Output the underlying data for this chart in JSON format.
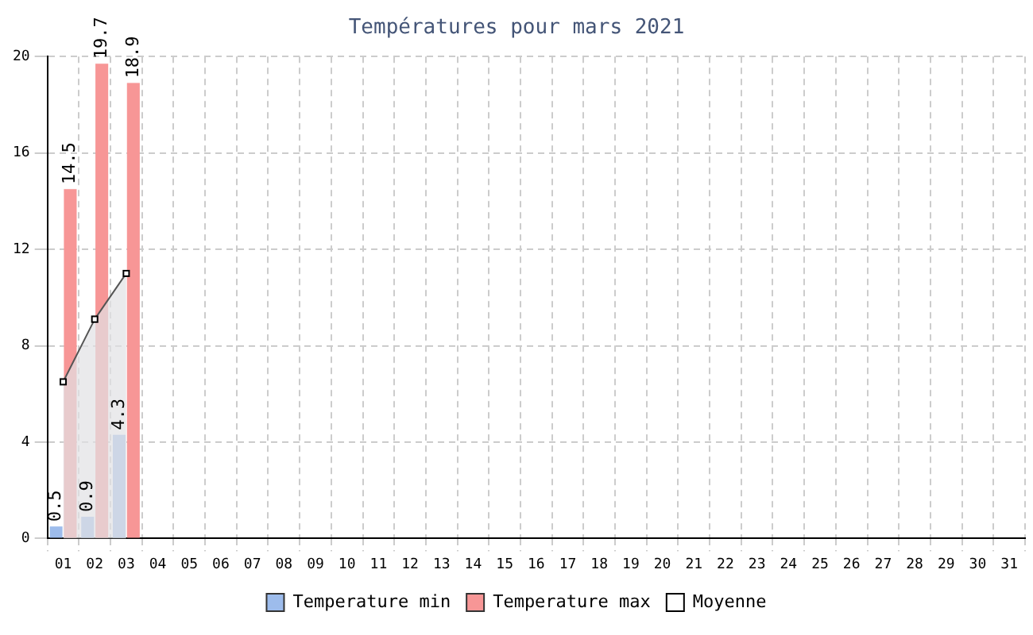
{
  "chart_data": {
    "type": "bar",
    "title": "Températures pour mars 2021",
    "categories": [
      "01",
      "02",
      "03",
      "04",
      "05",
      "06",
      "07",
      "08",
      "09",
      "10",
      "11",
      "12",
      "13",
      "14",
      "15",
      "16",
      "17",
      "18",
      "19",
      "20",
      "21",
      "22",
      "23",
      "24",
      "25",
      "26",
      "27",
      "28",
      "29",
      "30",
      "31"
    ],
    "series": [
      {
        "name": "Temperature min",
        "color": "#9dbcec",
        "values": [
          0.5,
          0.9,
          4.3,
          null,
          null,
          null,
          null,
          null,
          null,
          null,
          null,
          null,
          null,
          null,
          null,
          null,
          null,
          null,
          null,
          null,
          null,
          null,
          null,
          null,
          null,
          null,
          null,
          null,
          null,
          null,
          null
        ],
        "value_labels": [
          "0.5",
          "0.9",
          "4.3",
          null,
          null,
          null,
          null,
          null,
          null,
          null,
          null,
          null,
          null,
          null,
          null,
          null,
          null,
          null,
          null,
          null,
          null,
          null,
          null,
          null,
          null,
          null,
          null,
          null,
          null,
          null,
          null
        ]
      },
      {
        "name": "Temperature max",
        "color": "#f79696",
        "values": [
          14.5,
          19.7,
          18.9,
          null,
          null,
          null,
          null,
          null,
          null,
          null,
          null,
          null,
          null,
          null,
          null,
          null,
          null,
          null,
          null,
          null,
          null,
          null,
          null,
          null,
          null,
          null,
          null,
          null,
          null,
          null,
          null
        ],
        "value_labels": [
          "14.5",
          "19.7",
          "18.9",
          null,
          null,
          null,
          null,
          null,
          null,
          null,
          null,
          null,
          null,
          null,
          null,
          null,
          null,
          null,
          null,
          null,
          null,
          null,
          null,
          null,
          null,
          null,
          null,
          null,
          null,
          null,
          null
        ]
      },
      {
        "name": "Moyenne",
        "type": "area",
        "color": "#555555",
        "marker": "square",
        "values": [
          6.5,
          9.1,
          11.0,
          null,
          null,
          null,
          null,
          null,
          null,
          null,
          null,
          null,
          null,
          null,
          null,
          null,
          null,
          null,
          null,
          null,
          null,
          null,
          null,
          null,
          null,
          null,
          null,
          null,
          null,
          null,
          null
        ]
      }
    ],
    "ylim": [
      0,
      20
    ],
    "yticks": [
      0,
      4,
      8,
      12,
      16,
      20
    ],
    "grid": true,
    "legend": "bottom"
  }
}
